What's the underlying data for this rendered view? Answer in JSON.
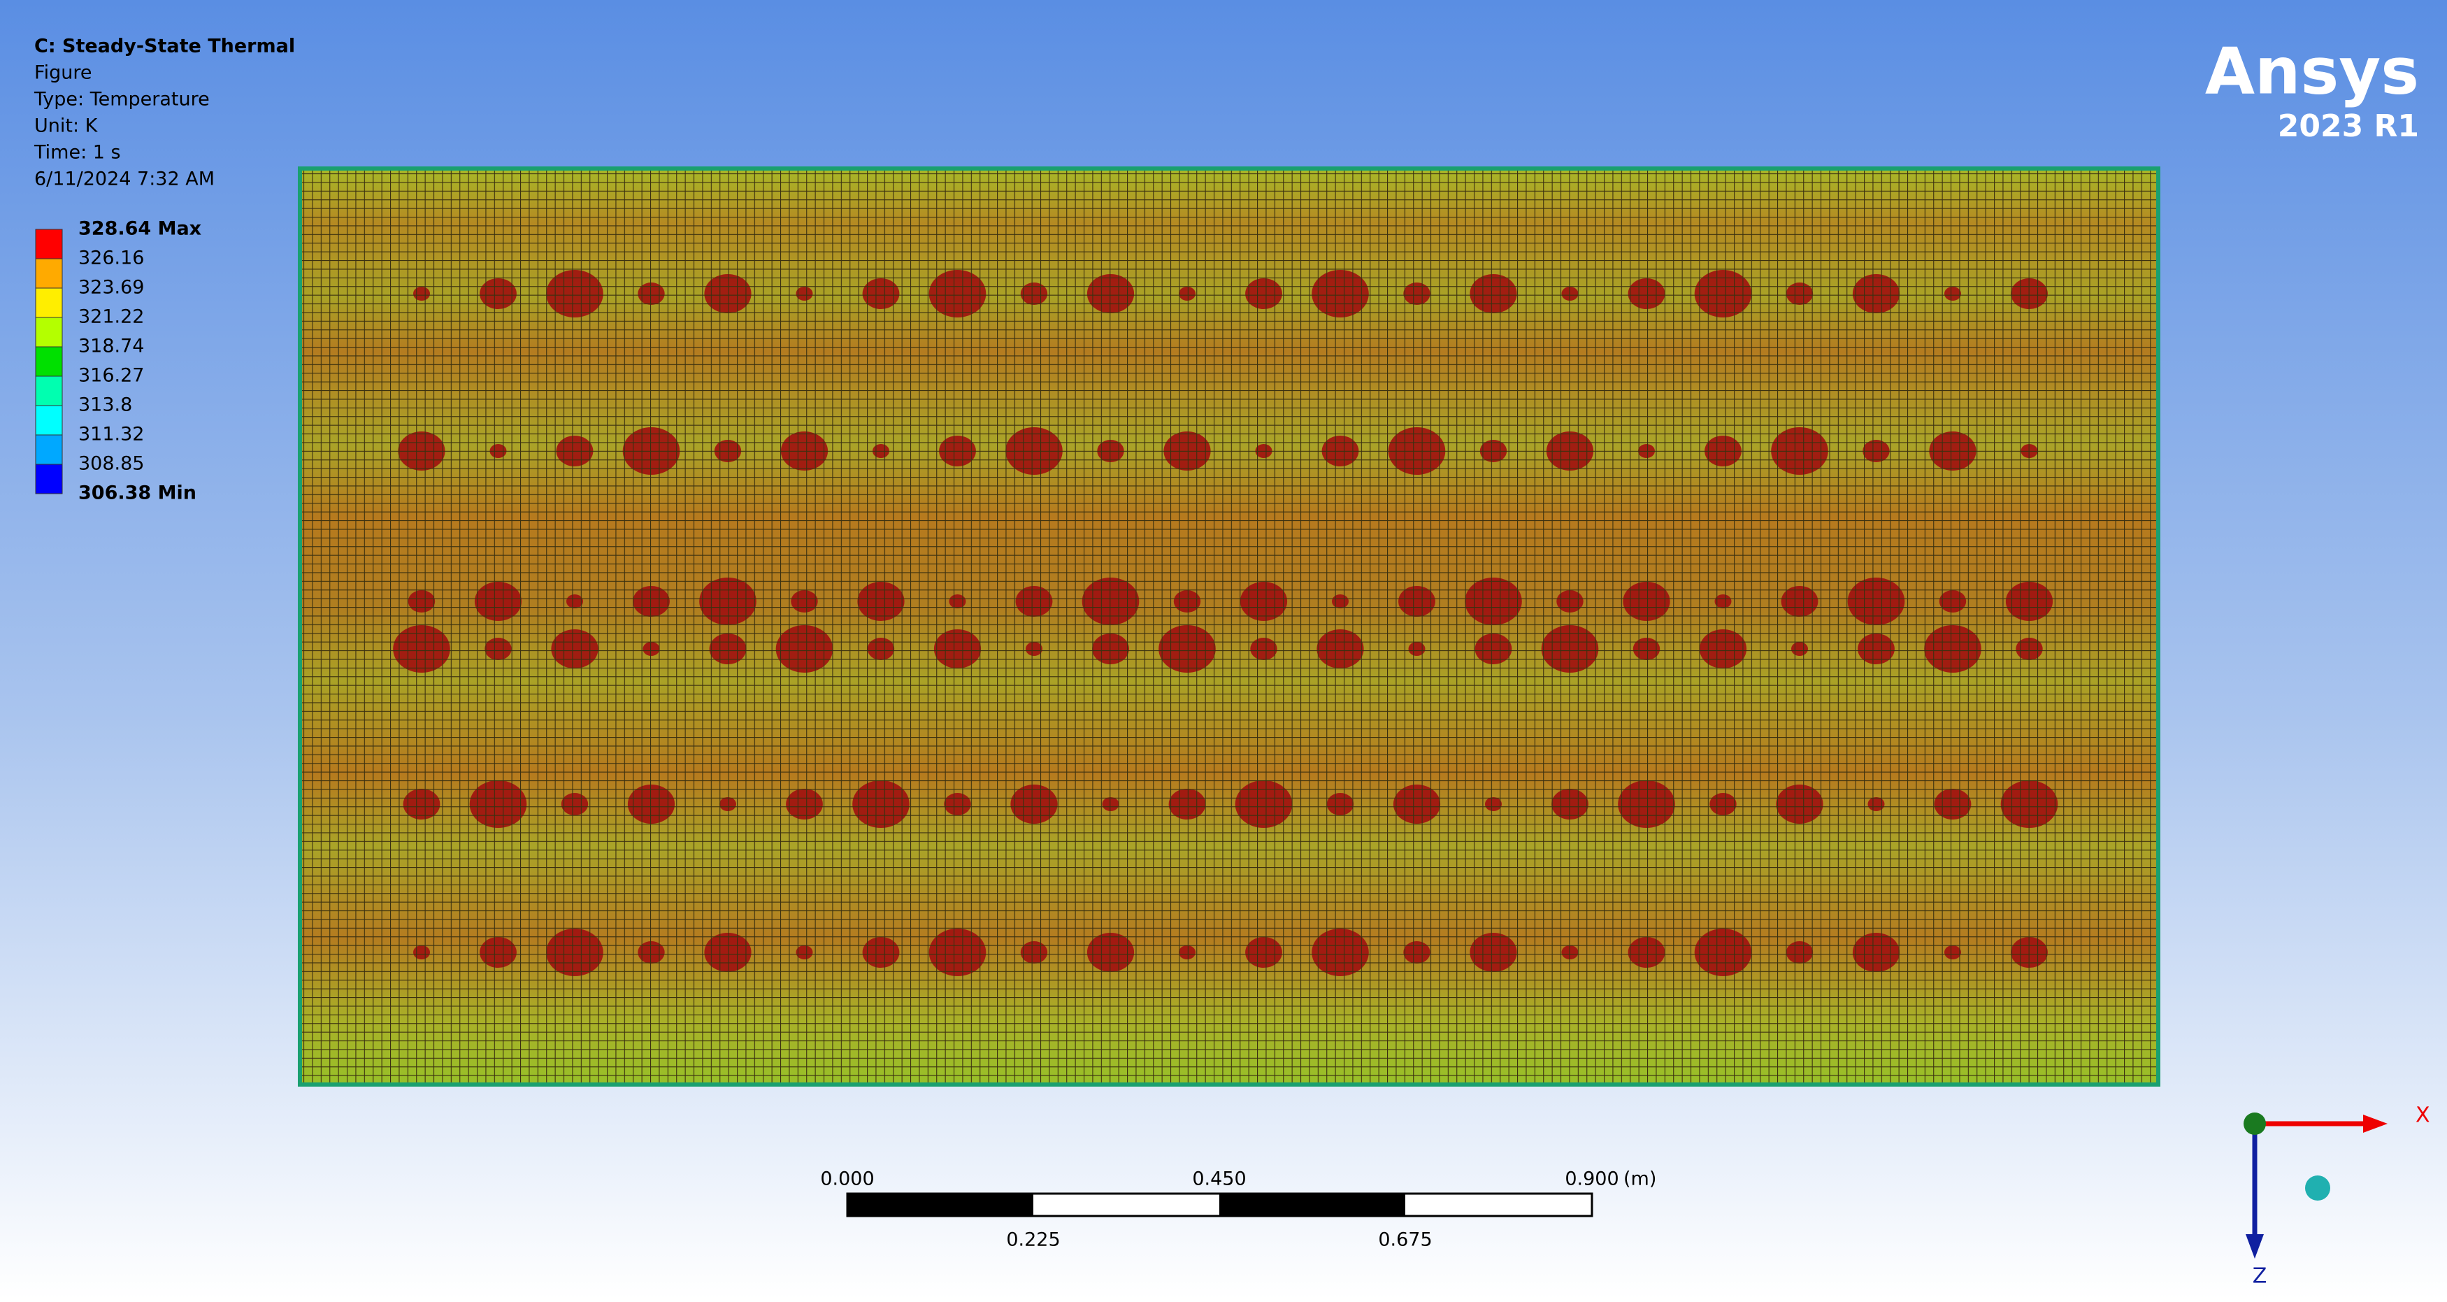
{
  "header": {
    "lines": [
      "C: Steady-State Thermal",
      "Figure",
      "Type: Temperature",
      "Unit: K",
      "Time: 1 s",
      "6/11/2024 7:32 AM"
    ]
  },
  "legend": {
    "labels": [
      "328.64 Max",
      "326.16",
      "323.69",
      "321.22",
      "318.74",
      "316.27",
      "313.8",
      "311.32",
      "308.85",
      "306.38 Min"
    ],
    "colors": [
      "#ff0000",
      "#ffaa00",
      "#ffee00",
      "#b4ff00",
      "#00e000",
      "#00ffb0",
      "#00ffff",
      "#00a8ff",
      "#0000ff"
    ]
  },
  "logo": {
    "name": "Ansys",
    "version": "2023 R1"
  },
  "scale_bar": {
    "top_labels": [
      "0.000",
      "0.450",
      "0.900"
    ],
    "unit": "(m)",
    "bottom_labels": [
      "0.225",
      "0.675"
    ]
  },
  "triad": {
    "x": "X",
    "z": "Z"
  }
}
